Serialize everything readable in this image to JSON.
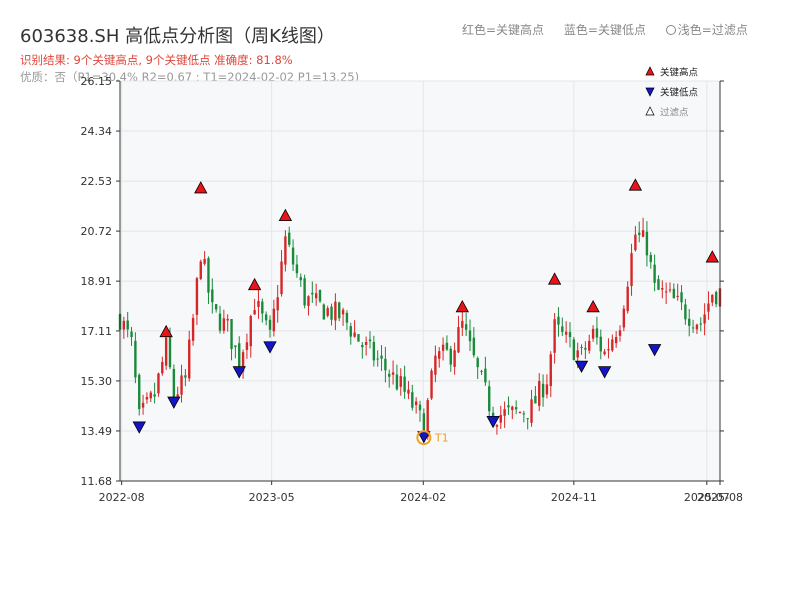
{
  "title": "603638.SH 高低点分析图（周K线图）",
  "subtitle": "识别结果: 9个关键高点, 9个关键低点  准确度: 81.8%",
  "quality": "优质：否（P1=30.4%  R2=0.67 ; T1=2024-02-02 P1=13.25)",
  "header_legend": {
    "red": "红色=关键高点",
    "blue": "蓝色=关键低点",
    "light": "浅色=过滤点"
  },
  "colors": {
    "up": "#d62728",
    "down": "#1a8a3a",
    "high": "#e8141b",
    "low": "#1515c8",
    "t1": "#f0a020",
    "axis": "#333333",
    "plot_bg": "#f7f8fa",
    "grid": "#e3e6ea"
  },
  "chart_data": {
    "type": "candlestick",
    "ylim": [
      11.68,
      26.15
    ],
    "y_ticks": [
      "26.15",
      "24.34",
      "22.53",
      "20.72",
      "18.91",
      "17.11",
      "15.30",
      "13.49",
      "11.68"
    ],
    "x_range": [
      "2022-07-29",
      "2025-07-25"
    ],
    "x_ticks": [
      {
        "label": "2022-08",
        "date": "2022-08-01"
      },
      {
        "label": "2023-05",
        "date": "2023-05-01"
      },
      {
        "label": "2024-02",
        "date": "2024-02-01"
      },
      {
        "label": "2024-11",
        "date": "2024-11-01"
      },
      {
        "label": "2025-07",
        "date": "2025-07-01"
      },
      {
        "label": "2025-08",
        "date": "2025-07-25"
      }
    ],
    "legend": {
      "position": "top-right",
      "items": [
        {
          "label": "关键高点",
          "kind": "high"
        },
        {
          "label": "关键低点",
          "kind": "low"
        },
        {
          "label": "过滤点",
          "kind": "filtered"
        }
      ]
    },
    "key_highs": [
      {
        "date": "2022-10-21",
        "value": 16.9
      },
      {
        "date": "2022-12-23",
        "value": 22.1
      },
      {
        "date": "2023-03-31",
        "value": 18.6
      },
      {
        "date": "2023-05-26",
        "value": 21.1
      },
      {
        "date": "2024-04-12",
        "value": 17.8
      },
      {
        "date": "2024-09-27",
        "value": 18.8
      },
      {
        "date": "2024-12-06",
        "value": 17.8
      },
      {
        "date": "2025-02-21",
        "value": 22.2
      },
      {
        "date": "2025-07-11",
        "value": 19.6
      }
    ],
    "key_lows": [
      {
        "date": "2022-09-02",
        "value": 13.6
      },
      {
        "date": "2022-11-04",
        "value": 14.5
      },
      {
        "date": "2023-03-03",
        "value": 15.6
      },
      {
        "date": "2023-04-28",
        "value": 16.5
      },
      {
        "date": "2024-02-02",
        "value": 13.25
      },
      {
        "date": "2024-06-07",
        "value": 13.8
      },
      {
        "date": "2024-11-15",
        "value": 15.8
      },
      {
        "date": "2024-12-27",
        "value": 15.6
      },
      {
        "date": "2025-03-28",
        "value": 16.4
      }
    ],
    "t1": {
      "label": "T1",
      "date": "2024-02-02",
      "value": 13.25
    },
    "price_path": [
      [
        "2022-07-29",
        17.6
      ],
      [
        "2022-08-19",
        16.6
      ],
      [
        "2022-09-02",
        13.9
      ],
      [
        "2022-09-30",
        14.8
      ],
      [
        "2022-10-21",
        16.5
      ],
      [
        "2022-11-04",
        14.8
      ],
      [
        "2022-11-25",
        15.3
      ],
      [
        "2022-12-09",
        17.5
      ],
      [
        "2022-12-23",
        20.0
      ],
      [
        "2023-01-13",
        17.8
      ],
      [
        "2023-02-10",
        17.2
      ],
      [
        "2023-03-03",
        16.0
      ],
      [
        "2023-03-31",
        18.2
      ],
      [
        "2023-04-28",
        16.8
      ],
      [
        "2023-05-26",
        20.4
      ],
      [
        "2023-06-30",
        18.3
      ],
      [
        "2023-08-04",
        17.9
      ],
      [
        "2023-09-08",
        17.6
      ],
      [
        "2023-10-13",
        16.6
      ],
      [
        "2023-11-17",
        15.9
      ],
      [
        "2023-12-22",
        15.1
      ],
      [
        "2024-01-19",
        14.2
      ],
      [
        "2024-02-02",
        13.6
      ],
      [
        "2024-02-23",
        16.1
      ],
      [
        "2024-03-22",
        16.3
      ],
      [
        "2024-04-12",
        17.3
      ],
      [
        "2024-05-10",
        15.6
      ],
      [
        "2024-06-07",
        14.1
      ],
      [
        "2024-07-12",
        14.1
      ],
      [
        "2024-08-16",
        14.3
      ],
      [
        "2024-09-13",
        15.4
      ],
      [
        "2024-09-27",
        17.2
      ],
      [
        "2024-10-25",
        16.6
      ],
      [
        "2024-11-15",
        16.2
      ],
      [
        "2024-12-06",
        17.0
      ],
      [
        "2024-12-27",
        16.3
      ],
      [
        "2025-01-24",
        17.5
      ],
      [
        "2025-02-21",
        20.6
      ],
      [
        "2025-03-14",
        20.2
      ],
      [
        "2025-03-28",
        18.6
      ],
      [
        "2025-04-25",
        18.3
      ],
      [
        "2025-05-23",
        17.8
      ],
      [
        "2025-06-20",
        17.4
      ],
      [
        "2025-07-11",
        18.5
      ],
      [
        "2025-07-25",
        18.5
      ]
    ]
  }
}
